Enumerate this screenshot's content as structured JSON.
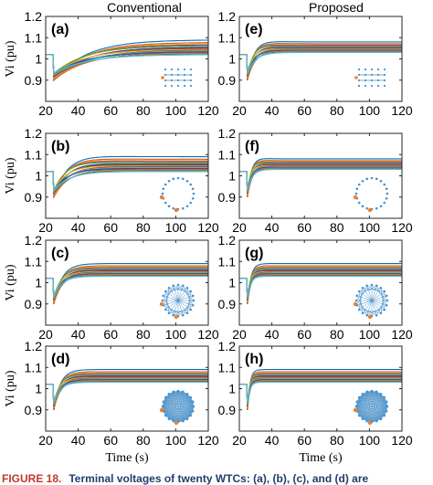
{
  "column_titles": [
    "Conventional",
    "Proposed"
  ],
  "caption": {
    "label": "FIGURE 18.",
    "text": "Terminal voltages of twenty WTCs: (a), (b), (c), and (d) are"
  },
  "colors": {
    "series": [
      "#0072bd",
      "#d95319",
      "#edb120",
      "#7e2f8e",
      "#77ac30",
      "#4dbeee",
      "#a2142f"
    ],
    "inset_node": "#4a90c8",
    "inset_highlight": "#f07f2a",
    "axis": "#262626"
  },
  "chart_data": [
    {
      "panel": "(a)",
      "type": "line",
      "column": "Conventional",
      "ylabel": "Vi (pu)",
      "xlabel": "",
      "xlim": [
        20,
        120
      ],
      "ylim": [
        0.8,
        1.2
      ],
      "xticks": [
        20,
        40,
        60,
        80,
        100,
        120
      ],
      "yticks": [
        0.9,
        1,
        1.1,
        1.2
      ],
      "yticklabels": [
        "0.9",
        "1",
        "1.1",
        "1.2"
      ],
      "disturbance_time": 25,
      "initial_value": 1.02,
      "dip_value": 0.9,
      "final_range": [
        1.02,
        1.09
      ],
      "time_constant_s": 20,
      "overshoot": 0,
      "inset": "grid",
      "series_count": 20
    },
    {
      "panel": "(e)",
      "type": "line",
      "column": "Proposed",
      "ylabel": "",
      "xlabel": "",
      "xlim": [
        20,
        120
      ],
      "ylim": [
        0.8,
        1.2
      ],
      "xticks": [
        20,
        40,
        60,
        80,
        100,
        120
      ],
      "yticks": [
        0.9,
        1,
        1.1,
        1.2
      ],
      "yticklabels": [
        "0.9",
        "1",
        "1.1",
        "1.2"
      ],
      "disturbance_time": 25,
      "initial_value": 1.02,
      "dip_value": 0.9,
      "final_range": [
        1.03,
        1.08
      ],
      "time_constant_s": 5,
      "overshoot": 0.02,
      "inset": "grid",
      "series_count": 20
    },
    {
      "panel": "(b)",
      "type": "line",
      "column": "Conventional",
      "ylabel": "Vi (pu)",
      "xlabel": "",
      "xlim": [
        20,
        120
      ],
      "ylim": [
        0.8,
        1.2
      ],
      "xticks": [
        20,
        40,
        60,
        80,
        100,
        120
      ],
      "yticks": [
        0.9,
        1,
        1.1,
        1.2
      ],
      "yticklabels": [
        "0.9",
        "1",
        "1.1",
        "1.2"
      ],
      "disturbance_time": 25,
      "initial_value": 1.02,
      "dip_value": 0.9,
      "final_range": [
        1.02,
        1.09
      ],
      "time_constant_s": 10,
      "overshoot": 0.02,
      "inset": "ring",
      "series_count": 20
    },
    {
      "panel": "(f)",
      "type": "line",
      "column": "Proposed",
      "ylabel": "",
      "xlabel": "",
      "xlim": [
        20,
        120
      ],
      "ylim": [
        0.8,
        1.2
      ],
      "xticks": [
        20,
        40,
        60,
        80,
        100,
        120
      ],
      "yticks": [
        0.9,
        1,
        1.1,
        1.2
      ],
      "yticklabels": [
        "0.9",
        "1",
        "1.1",
        "1.2"
      ],
      "disturbance_time": 25,
      "initial_value": 1.02,
      "dip_value": 0.9,
      "final_range": [
        1.03,
        1.08
      ],
      "time_constant_s": 3,
      "overshoot": 0.02,
      "inset": "ring",
      "series_count": 20
    },
    {
      "panel": "(c)",
      "type": "line",
      "column": "Conventional",
      "ylabel": "Vi (pu)",
      "xlabel": "",
      "xlim": [
        20,
        120
      ],
      "ylim": [
        0.8,
        1.2
      ],
      "xticks": [
        20,
        40,
        60,
        80,
        100,
        120
      ],
      "yticks": [
        0.9,
        1,
        1.1,
        1.2
      ],
      "yticklabels": [
        "0.9",
        "1",
        "1.1",
        "1.2"
      ],
      "disturbance_time": 25,
      "initial_value": 1.02,
      "dip_value": 0.9,
      "final_range": [
        1.03,
        1.09
      ],
      "time_constant_s": 5,
      "overshoot": 0,
      "inset": "mesh",
      "series_count": 20
    },
    {
      "panel": "(g)",
      "type": "line",
      "column": "Proposed",
      "ylabel": "",
      "xlabel": "",
      "xlim": [
        20,
        120
      ],
      "ylim": [
        0.8,
        1.2
      ],
      "xticks": [
        20,
        40,
        60,
        80,
        100,
        120
      ],
      "yticks": [
        0.9,
        1,
        1.1,
        1.2
      ],
      "yticklabels": [
        "0.9",
        "1",
        "1.1",
        "1.2"
      ],
      "disturbance_time": 25,
      "initial_value": 1.02,
      "dip_value": 0.9,
      "final_range": [
        1.03,
        1.09
      ],
      "time_constant_s": 2,
      "overshoot": 0,
      "inset": "mesh",
      "series_count": 20
    },
    {
      "panel": "(d)",
      "type": "line",
      "column": "Conventional",
      "ylabel": "Vi (pu)",
      "xlabel": "Time (s)",
      "xlim": [
        20,
        120
      ],
      "ylim": [
        0.8,
        1.2
      ],
      "xticks": [
        20,
        40,
        60,
        80,
        100,
        120
      ],
      "yticks": [
        0.9,
        1,
        1.1,
        1.2
      ],
      "yticklabels": [
        "0.9",
        "1",
        "1.1",
        "1.2"
      ],
      "disturbance_time": 25,
      "initial_value": 1.02,
      "dip_value": 0.9,
      "final_range": [
        1.03,
        1.09
      ],
      "time_constant_s": 4,
      "overshoot": 0,
      "inset": "full",
      "series_count": 20
    },
    {
      "panel": "(h)",
      "type": "line",
      "column": "Proposed",
      "ylabel": "",
      "xlabel": "Time (s)",
      "xlim": [
        20,
        120
      ],
      "ylim": [
        0.8,
        1.2
      ],
      "xticks": [
        20,
        40,
        60,
        80,
        100,
        120
      ],
      "yticks": [
        0.9,
        1,
        1.1,
        1.2
      ],
      "yticklabels": [
        "0.9",
        "1",
        "1.1",
        "1.2"
      ],
      "disturbance_time": 25,
      "initial_value": 1.02,
      "dip_value": 0.9,
      "final_range": [
        1.03,
        1.09
      ],
      "time_constant_s": 1.5,
      "overshoot": 0,
      "inset": "full",
      "series_count": 20
    }
  ]
}
